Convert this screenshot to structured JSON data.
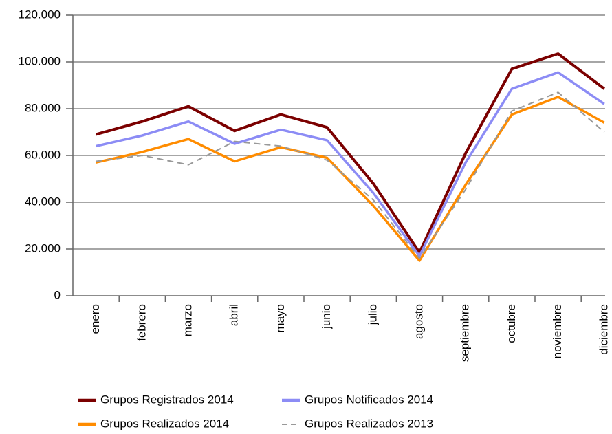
{
  "chart_data": {
    "type": "line",
    "categories": [
      "enero",
      "febrero",
      "marzo",
      "abril",
      "mayo",
      "junio",
      "julio",
      "agosto",
      "septiembre",
      "octubre",
      "noviembre",
      "diciembre"
    ],
    "series": [
      {
        "name": "Grupos Registrados 2014",
        "color": "#7b0000",
        "values": [
          69000,
          74500,
          81000,
          70500,
          77500,
          72000,
          48000,
          18500,
          61000,
          97000,
          103500,
          88500
        ]
      },
      {
        "name": "Grupos Notificados 2014",
        "color": "#8c8cf5",
        "values": [
          64000,
          68500,
          74500,
          65000,
          71000,
          66500,
          44000,
          17000,
          57000,
          88500,
          95500,
          82000
        ]
      },
      {
        "name": "Grupos Realizados 2014",
        "color": "#ff8c00",
        "values": [
          57000,
          61500,
          67000,
          57500,
          63500,
          59000,
          38500,
          15000,
          47500,
          77500,
          85000,
          74000
        ]
      },
      {
        "name": "Grupos Realizados 2013",
        "color": "#999999",
        "dashed": true,
        "values": [
          57500,
          60000,
          56000,
          66000,
          64000,
          58000,
          41000,
          16000,
          45500,
          79000,
          87000,
          70000
        ]
      }
    ],
    "ylim": [
      0,
      120000
    ],
    "yticks": [
      0,
      {
        "value": 20000,
        "label": "20.000"
      },
      {
        "value": 40000,
        "label": "40.000"
      },
      {
        "value": 60000,
        "label": "60.000"
      },
      {
        "value": 80000,
        "label": "80.000"
      },
      {
        "value": 100000,
        "label": "100.000"
      },
      {
        "value": 120000,
        "label": "120.000"
      }
    ],
    "grid": true
  }
}
